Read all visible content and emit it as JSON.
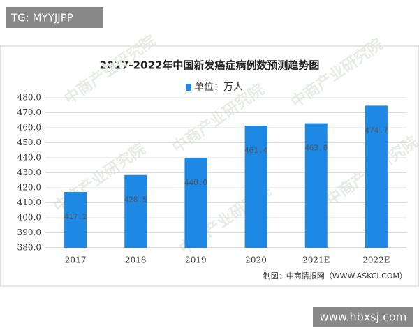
{
  "overlay_top": "TG: MYYJJPP",
  "overlay_bottom": "www.hbxsj.com",
  "chart_data": {
    "type": "bar",
    "title": "2017-2022年中国新发癌症病例数预测趋势图",
    "legend_label": "单位：万人",
    "source": "制图：中商情报网（WWW.ASKCI.COM）",
    "watermark": "中商产业研究院",
    "categories": [
      "2017",
      "2018",
      "2019",
      "2020",
      "2021E",
      "2022E"
    ],
    "values": [
      417.2,
      428.5,
      440.0,
      461.4,
      463.0,
      474.7
    ],
    "value_labels": [
      "417.2",
      "428.5",
      "440.0",
      "461.4",
      "463.0",
      "474.7"
    ],
    "color": "#1e88e5",
    "ylim": [
      380,
      480
    ],
    "yticks": [
      {
        "value": 380,
        "label": "380.0"
      },
      {
        "value": 390,
        "label": "390.0"
      },
      {
        "value": 400,
        "label": "400.0"
      },
      {
        "value": 410,
        "label": "410.0"
      },
      {
        "value": 420,
        "label": "420.0"
      },
      {
        "value": 430,
        "label": "430.0"
      },
      {
        "value": 440,
        "label": "440.0"
      },
      {
        "value": 450,
        "label": "450.0"
      },
      {
        "value": 460,
        "label": "460.0"
      },
      {
        "value": 470,
        "label": "470.0"
      },
      {
        "value": 480,
        "label": "480.0"
      }
    ],
    "grid": true
  }
}
